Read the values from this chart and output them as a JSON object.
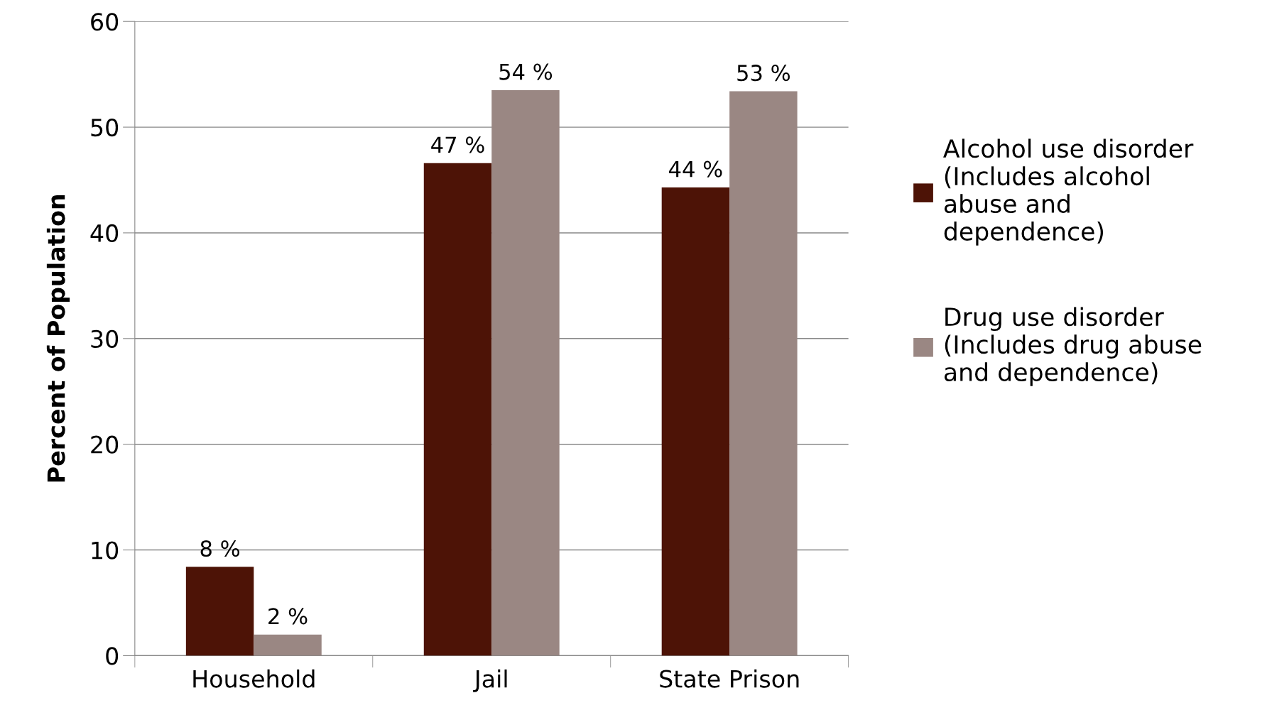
{
  "chart_data": {
    "type": "bar",
    "ylabel": "Percent of Population",
    "categories": [
      "Household",
      "Jail",
      "State Prison"
    ],
    "series": [
      {
        "name": "Alcohol use disorder\n(Includes alcohol\nabuse and\ndependence)",
        "color": "#4d1306",
        "values": [
          8.4,
          46.6,
          44.3
        ],
        "value_labels": [
          "8 %",
          "47 %",
          "44 %"
        ]
      },
      {
        "name": "Drug use disorder\n(Includes drug abuse\nand dependence)",
        "color": "#9a8783",
        "values": [
          2.0,
          53.5,
          53.4
        ],
        "value_labels": [
          "2 %",
          "54 %",
          "53 %"
        ]
      }
    ],
    "ylim": [
      0,
      60
    ],
    "yticks": [
      0,
      10,
      20,
      30,
      40,
      50,
      60
    ],
    "grid": "y",
    "legend": "right"
  }
}
